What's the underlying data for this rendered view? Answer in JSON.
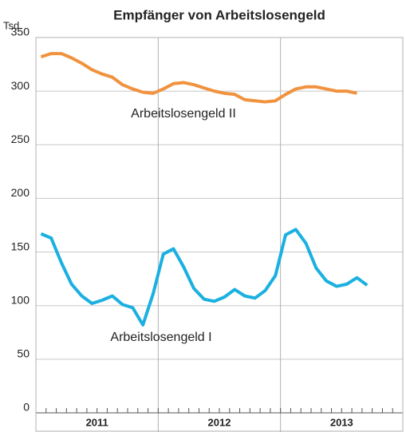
{
  "chart_data": {
    "type": "line",
    "title": "Empfänger von Arbeitslosengeld",
    "y_unit": "Tsd.",
    "categories": [
      null,
      null,
      null,
      null,
      null,
      null,
      null,
      null,
      null,
      null,
      null,
      null,
      null,
      null,
      null,
      null,
      null,
      null,
      null,
      null,
      null,
      null,
      null,
      null,
      null,
      null,
      null,
      null,
      null,
      null,
      null,
      null,
      null,
      null,
      null,
      null
    ],
    "year_labels": [
      "2011",
      "2012",
      "2013"
    ],
    "series": [
      {
        "name": "Arbeitslosengeld II",
        "color": "#f0923e",
        "values": [
          332,
          335,
          335,
          331,
          326,
          320,
          316,
          313,
          306,
          302,
          299,
          298,
          302,
          307,
          308,
          306,
          303,
          300,
          298,
          297,
          292,
          291,
          290,
          291,
          297,
          302,
          304,
          304,
          302,
          300,
          300,
          298,
          null,
          null,
          null,
          null
        ]
      },
      {
        "name": "Arbeitslosengeld I",
        "color": "#1ab0e0",
        "values": [
          167,
          163,
          140,
          120,
          109,
          102,
          105,
          109,
          101,
          98,
          82,
          111,
          148,
          153,
          136,
          116,
          106,
          104,
          108,
          115,
          109,
          107,
          114,
          128,
          166,
          171,
          158,
          135,
          123,
          118,
          120,
          126,
          119,
          null,
          null,
          null
        ]
      }
    ],
    "ylim": [
      0,
      350
    ],
    "yticks": [
      0,
      50,
      100,
      150,
      200,
      250,
      300,
      350
    ],
    "grid": true
  }
}
